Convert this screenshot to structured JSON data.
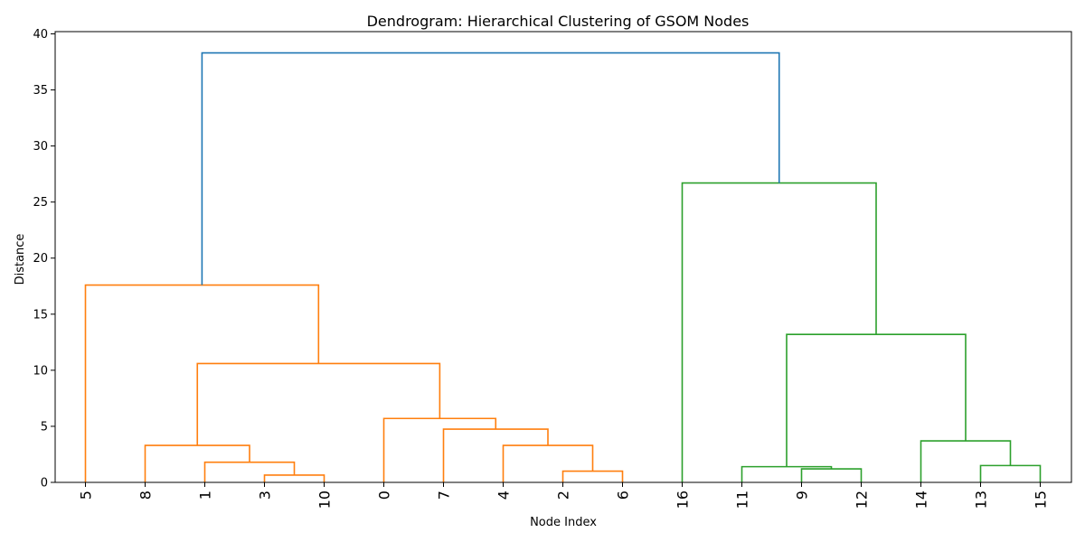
{
  "chart_data": {
    "type": "dendrogram",
    "title": "Dendrogram: Hierarchical Clustering of GSOM Nodes",
    "xlabel": "Node Index",
    "ylabel": "Distance",
    "ylim": [
      0,
      40.2
    ],
    "yticks": [
      0,
      5,
      10,
      15,
      20,
      25,
      30,
      35,
      40
    ],
    "leaves": [
      "5",
      "8",
      "1",
      "3",
      "10",
      "0",
      "7",
      "4",
      "2",
      "6",
      "16",
      "11",
      "9",
      "12",
      "14",
      "13",
      "15"
    ],
    "colors": {
      "orange": "#ff7f0e",
      "green": "#2ca02c",
      "blue": "#1f77b4"
    },
    "links": [
      {
        "left": "leaf:3",
        "right": "leaf:4",
        "height": 0.65,
        "color": "orange"
      },
      {
        "left": "leaf:2",
        "right": "link:0",
        "height": 1.8,
        "color": "orange"
      },
      {
        "left": "leaf:1",
        "right": "link:1",
        "height": 3.3,
        "color": "orange"
      },
      {
        "left": "leaf:8",
        "right": "leaf:9",
        "height": 1.0,
        "color": "orange"
      },
      {
        "left": "leaf:7",
        "right": "link:3",
        "height": 3.3,
        "color": "orange"
      },
      {
        "left": "leaf:6",
        "right": "link:4",
        "height": 4.75,
        "color": "orange"
      },
      {
        "left": "leaf:5",
        "right": "link:5",
        "height": 5.7,
        "color": "orange"
      },
      {
        "left": "link:2",
        "right": "link:6",
        "height": 10.6,
        "color": "orange"
      },
      {
        "left": "leaf:0",
        "right": "link:7",
        "height": 17.6,
        "color": "orange"
      },
      {
        "left": "leaf:12",
        "right": "leaf:13",
        "height": 1.2,
        "color": "green"
      },
      {
        "left": "leaf:11",
        "right": "link:9",
        "height": 1.4,
        "color": "green"
      },
      {
        "left": "leaf:15",
        "right": "leaf:16",
        "height": 1.5,
        "color": "green"
      },
      {
        "left": "leaf:14",
        "right": "link:11",
        "height": 3.7,
        "color": "green"
      },
      {
        "left": "link:10",
        "right": "link:12",
        "height": 13.2,
        "color": "green"
      },
      {
        "left": "leaf:10",
        "right": "link:13",
        "height": 26.7,
        "color": "green"
      },
      {
        "left": "link:8",
        "right": "link:14",
        "height": 38.3,
        "color": "blue"
      }
    ]
  }
}
